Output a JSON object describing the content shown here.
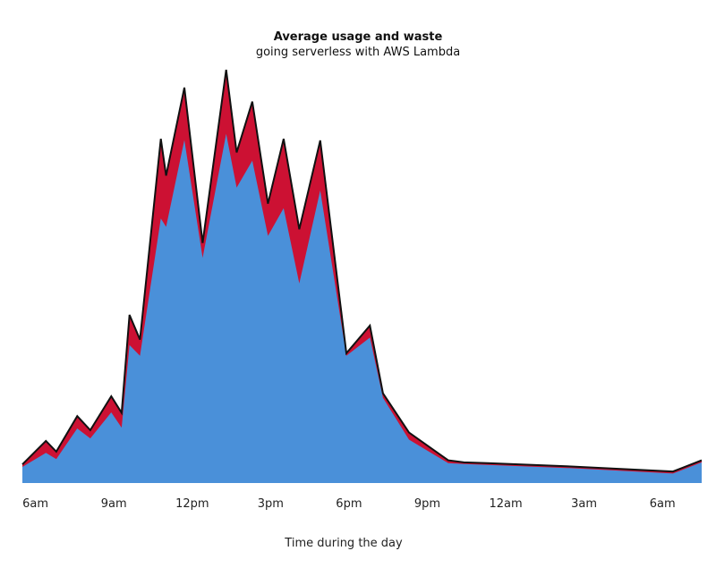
{
  "chart_data": {
    "type": "area",
    "title": "Average usage and waste",
    "subtitle": "going serverless with AWS Lambda",
    "xlabel": "Time during the day",
    "ylabel": "",
    "x_tick_labels": [
      "6am",
      "9am",
      "12pm",
      "3pm",
      "6pm",
      "9pm",
      "12am",
      "3am",
      "6am"
    ],
    "x_tick_hours": [
      6,
      9,
      12,
      15,
      18,
      21,
      24,
      27,
      30
    ],
    "xlim": [
      5.5,
      31.5
    ],
    "ylim": [
      0,
      100
    ],
    "grid": false,
    "colors": {
      "usage": "#4a90d9",
      "waste": "#cc1133",
      "outline": "#111111"
    },
    "series": [
      {
        "role": "usage",
        "x": [
          5.5,
          6.4,
          6.8,
          7.6,
          8.1,
          8.9,
          9.3,
          9.6,
          10.0,
          10.8,
          11.0,
          11.7,
          12.4,
          13.3,
          13.7,
          14.3,
          14.9,
          15.5,
          16.1,
          16.9,
          17.9,
          18.8,
          19.3,
          20.3,
          21.8,
          22.4,
          23.3,
          26.5,
          30.4,
          31.5
        ],
        "values": [
          3.9,
          7.3,
          5.8,
          13.2,
          10.8,
          17.1,
          13.4,
          33.4,
          30.8,
          64.0,
          62.0,
          83.0,
          54.5,
          84.5,
          71.5,
          78.0,
          59.8,
          66.5,
          48.3,
          70.8,
          30.8,
          35.2,
          20.6,
          10.5,
          4.8,
          4.6,
          4.4,
          3.6,
          2.3,
          5.0
        ]
      },
      {
        "role": "total",
        "x": [
          5.5,
          6.4,
          6.8,
          7.6,
          8.1,
          8.9,
          9.3,
          9.6,
          10.0,
          10.8,
          11.0,
          11.7,
          12.4,
          13.3,
          13.7,
          14.3,
          14.9,
          15.5,
          16.1,
          16.9,
          17.9,
          18.8,
          19.3,
          20.3,
          21.8,
          22.4,
          23.3,
          26.5,
          30.4,
          31.5
        ],
        "values": [
          4.5,
          10.2,
          7.6,
          16.2,
          12.8,
          21.0,
          17.0,
          40.7,
          34.7,
          83.3,
          74.4,
          95.7,
          58.1,
          100.0,
          80.0,
          92.3,
          67.6,
          83.3,
          61.4,
          82.9,
          31.4,
          38.1,
          21.7,
          12.2,
          5.5,
          5.0,
          4.8,
          4.0,
          2.8,
          5.5
        ]
      }
    ]
  }
}
